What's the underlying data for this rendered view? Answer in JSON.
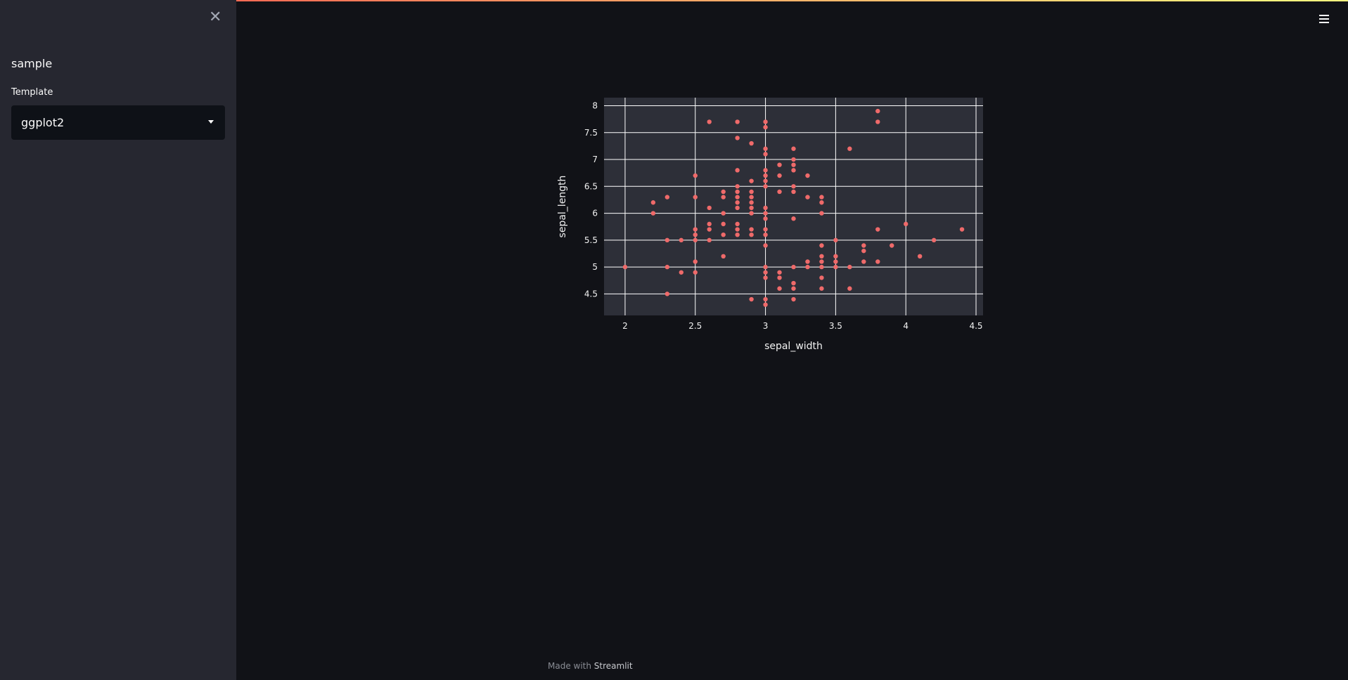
{
  "sidebar": {
    "title": "sample",
    "select_label": "Template",
    "select_value": "ggplot2"
  },
  "footer": {
    "prefix": "Made with ",
    "brand": "Streamlit"
  },
  "colors": {
    "background": "#111217",
    "sidebar": "#262730",
    "plot_bg": "#2d2f38",
    "marker": "#ef6a6a",
    "grid": "#ffffff"
  },
  "chart_data": {
    "type": "scatter",
    "title": "",
    "xlabel": "sepal_width",
    "ylabel": "sepal_length",
    "xlim": [
      1.85,
      4.55
    ],
    "ylim": [
      4.1,
      8.15
    ],
    "xticks": [
      2,
      2.5,
      3,
      3.5,
      4,
      4.5
    ],
    "yticks": [
      4.5,
      5,
      5.5,
      6,
      6.5,
      7,
      7.5,
      8
    ],
    "xtick_labels": [
      "2",
      "2.5",
      "3",
      "3.5",
      "4",
      "4.5"
    ],
    "ytick_labels": [
      "4.5",
      "5",
      "5.5",
      "6",
      "6.5",
      "7",
      "7.5",
      "8"
    ],
    "grid": true,
    "points": [
      [
        2,
        5
      ],
      [
        2.2,
        6.2
      ],
      [
        2.2,
        6
      ],
      [
        2.3,
        6.3
      ],
      [
        2.3,
        5.5
      ],
      [
        2.3,
        5
      ],
      [
        2.3,
        4.5
      ],
      [
        2.4,
        5.5
      ],
      [
        2.4,
        4.9
      ],
      [
        2.5,
        6.7
      ],
      [
        2.5,
        6.3
      ],
      [
        2.5,
        5.7
      ],
      [
        2.5,
        5.6
      ],
      [
        2.5,
        5.5
      ],
      [
        2.5,
        5.1
      ],
      [
        2.5,
        4.9
      ],
      [
        2.6,
        7.7
      ],
      [
        2.6,
        6.1
      ],
      [
        2.6,
        5.8
      ],
      [
        2.6,
        5.7
      ],
      [
        2.6,
        5.5
      ],
      [
        2.7,
        6.4
      ],
      [
        2.7,
        6.3
      ],
      [
        2.7,
        6
      ],
      [
        2.7,
        5.8
      ],
      [
        2.7,
        5.6
      ],
      [
        2.7,
        5.2
      ],
      [
        2.8,
        7.7
      ],
      [
        2.8,
        7.4
      ],
      [
        2.8,
        6.8
      ],
      [
        2.8,
        6.5
      ],
      [
        2.8,
        6.4
      ],
      [
        2.8,
        6.3
      ],
      [
        2.8,
        6.2
      ],
      [
        2.8,
        6.1
      ],
      [
        2.8,
        5.8
      ],
      [
        2.8,
        5.7
      ],
      [
        2.8,
        5.6
      ],
      [
        2.9,
        7.3
      ],
      [
        2.9,
        6.6
      ],
      [
        2.9,
        6.4
      ],
      [
        2.9,
        6.3
      ],
      [
        2.9,
        6.2
      ],
      [
        2.9,
        6.1
      ],
      [
        2.9,
        6
      ],
      [
        2.9,
        5.7
      ],
      [
        2.9,
        5.6
      ],
      [
        2.9,
        4.4
      ],
      [
        3,
        7.7
      ],
      [
        3,
        7.6
      ],
      [
        3,
        7.2
      ],
      [
        3,
        7.1
      ],
      [
        3,
        6.8
      ],
      [
        3,
        6.7
      ],
      [
        3,
        6.6
      ],
      [
        3,
        6.5
      ],
      [
        3,
        6.1
      ],
      [
        3,
        6
      ],
      [
        3,
        5.9
      ],
      [
        3,
        5.7
      ],
      [
        3,
        5.6
      ],
      [
        3,
        5.4
      ],
      [
        3,
        5
      ],
      [
        3,
        4.9
      ],
      [
        3,
        4.8
      ],
      [
        3,
        4.4
      ],
      [
        3,
        4.3
      ],
      [
        3.1,
        6.9
      ],
      [
        3.1,
        6.7
      ],
      [
        3.1,
        6.4
      ],
      [
        3.1,
        4.9
      ],
      [
        3.1,
        4.8
      ],
      [
        3.1,
        4.6
      ],
      [
        3.2,
        7.2
      ],
      [
        3.2,
        7
      ],
      [
        3.2,
        6.9
      ],
      [
        3.2,
        6.8
      ],
      [
        3.2,
        6.5
      ],
      [
        3.2,
        6.4
      ],
      [
        3.2,
        5.9
      ],
      [
        3.2,
        5
      ],
      [
        3.2,
        4.7
      ],
      [
        3.2,
        4.6
      ],
      [
        3.2,
        4.4
      ],
      [
        3.3,
        6.7
      ],
      [
        3.3,
        6.3
      ],
      [
        3.3,
        5.1
      ],
      [
        3.3,
        5
      ],
      [
        3.4,
        6.3
      ],
      [
        3.4,
        6.2
      ],
      [
        3.4,
        6
      ],
      [
        3.4,
        5.4
      ],
      [
        3.4,
        5.2
      ],
      [
        3.4,
        5.1
      ],
      [
        3.4,
        5
      ],
      [
        3.4,
        4.8
      ],
      [
        3.4,
        4.6
      ],
      [
        3.5,
        5.5
      ],
      [
        3.5,
        5.2
      ],
      [
        3.5,
        5.1
      ],
      [
        3.5,
        5
      ],
      [
        3.6,
        7.2
      ],
      [
        3.6,
        5
      ],
      [
        3.6,
        4.6
      ],
      [
        3.7,
        5.4
      ],
      [
        3.7,
        5.3
      ],
      [
        3.7,
        5.1
      ],
      [
        3.8,
        7.9
      ],
      [
        3.8,
        7.7
      ],
      [
        3.8,
        5.7
      ],
      [
        3.8,
        5.1
      ],
      [
        3.9,
        5.4
      ],
      [
        4,
        5.8
      ],
      [
        4.1,
        5.2
      ],
      [
        4.2,
        5.5
      ],
      [
        4.4,
        5.7
      ]
    ]
  }
}
